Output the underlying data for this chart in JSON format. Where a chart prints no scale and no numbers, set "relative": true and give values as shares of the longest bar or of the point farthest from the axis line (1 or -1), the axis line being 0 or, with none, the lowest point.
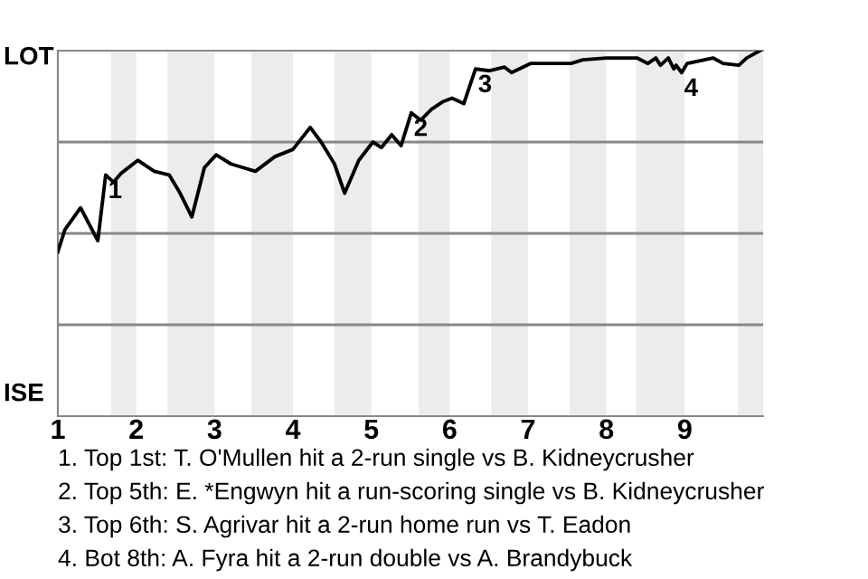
{
  "chart_data": {
    "type": "line",
    "relative": true,
    "color": "#000000",
    "x": [
      1.0,
      1.09,
      1.29,
      1.51,
      1.61,
      1.71,
      1.81,
      2.02,
      2.23,
      2.42,
      2.56,
      2.71,
      2.87,
      3.02,
      3.21,
      3.52,
      3.77,
      4.0,
      4.22,
      4.36,
      4.53,
      4.66,
      4.84,
      5.02,
      5.13,
      5.26,
      5.38,
      5.51,
      5.63,
      5.77,
      5.91,
      6.03,
      6.18,
      6.33,
      6.51,
      6.7,
      6.79,
      7.03,
      7.55,
      7.7,
      8.0,
      8.39,
      8.53,
      8.63,
      8.69,
      8.79,
      8.86,
      8.89,
      8.96,
      9.03,
      9.36,
      9.49,
      9.69,
      9.79,
      9.96
    ],
    "values": [
      0.45,
      0.51,
      0.57,
      0.48,
      0.66,
      0.64,
      0.665,
      0.7,
      0.67,
      0.66,
      0.61,
      0.545,
      0.68,
      0.715,
      0.69,
      0.67,
      0.71,
      0.73,
      0.79,
      0.75,
      0.69,
      0.61,
      0.7,
      0.75,
      0.735,
      0.77,
      0.74,
      0.83,
      0.81,
      0.84,
      0.86,
      0.87,
      0.855,
      0.95,
      0.945,
      0.955,
      0.94,
      0.965,
      0.965,
      0.975,
      0.98,
      0.98,
      0.965,
      0.98,
      0.96,
      0.98,
      0.95,
      0.96,
      0.94,
      0.965,
      0.98,
      0.965,
      0.96,
      0.98,
      1.0
    ],
    "xlim": [
      1,
      10
    ],
    "xticks": [
      1,
      2,
      3,
      4,
      5,
      6,
      7,
      8,
      9
    ],
    "bands": [
      {
        "axis": "x",
        "from": 1.68,
        "to": 2,
        "color": "#ececec"
      },
      {
        "axis": "x",
        "from": 2.4,
        "to": 3,
        "color": "#ececec"
      },
      {
        "axis": "x",
        "from": 3.47,
        "to": 4,
        "color": "#ececec"
      },
      {
        "axis": "x",
        "from": 4.53,
        "to": 5,
        "color": "#ececec"
      },
      {
        "axis": "x",
        "from": 5.6,
        "to": 6,
        "color": "#ececec"
      },
      {
        "axis": "x",
        "from": 6.53,
        "to": 7,
        "color": "#ececec"
      },
      {
        "axis": "x",
        "from": 7.53,
        "to": 8,
        "color": "#ececec"
      },
      {
        "axis": "x",
        "from": 8.38,
        "to": 9,
        "color": "#ececec"
      },
      {
        "axis": "x",
        "from": 9.68,
        "to": 10,
        "color": "#ececec"
      }
    ],
    "ref_lines": [
      {
        "axis": "y",
        "value": 0.25,
        "color": "#888888"
      },
      {
        "axis": "y",
        "value": 0.5,
        "color": "#888888"
      },
      {
        "axis": "y",
        "value": 0.75,
        "color": "#888888"
      }
    ],
    "annotations": [
      "LOT",
      "ISE",
      {
        "text": "1",
        "x": 1.61,
        "y": 0.66
      },
      {
        "text": "2",
        "x": 5.51,
        "y": 0.83
      },
      {
        "text": "3",
        "x": 6.33,
        "y": 0.95
      },
      {
        "text": "4",
        "x": 8.96,
        "y": 0.94
      },
      "1. Top 1st: T. O'Mullen hit a 2-run single vs B. Kidneycrusher",
      "2. Top 5th: E. *Engwyn hit a run-scoring single vs B. Kidneycrusher",
      "3. Top 6th: S. Agrivar hit a 2-run home run vs T. Eadon",
      "4. Bot 8th: A. Fyra hit a 2-run double vs A. Brandybuck"
    ]
  }
}
